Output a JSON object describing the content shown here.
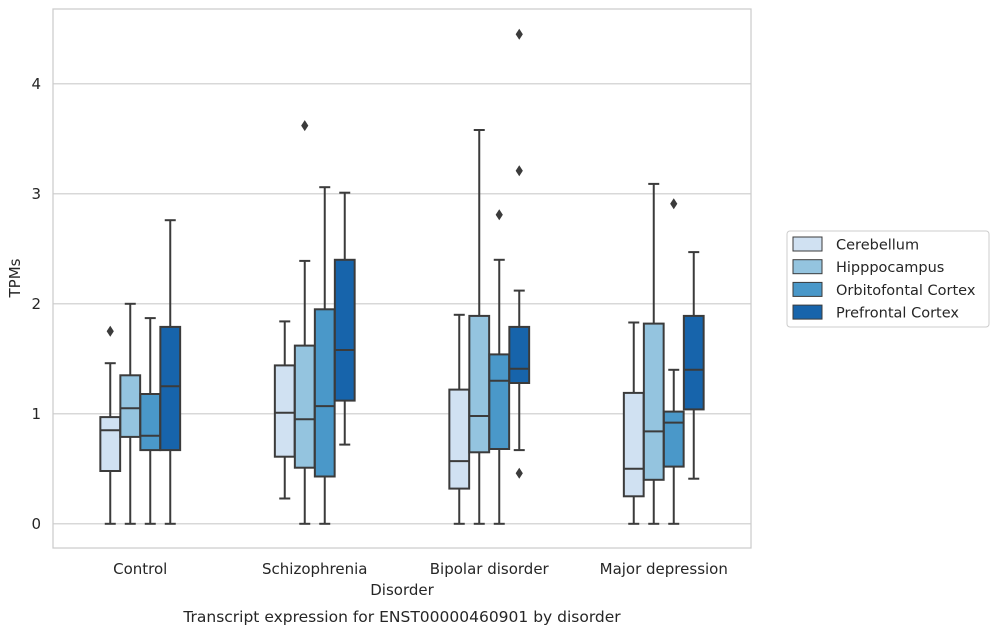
{
  "caption": "Transcript expression for ENST00000460901 by disorder",
  "colors": {
    "Cerebellum": "#d0e1f2",
    "Hipppocampus": "#94c4df",
    "Orbitofontal Cortex": "#4a98c9",
    "Prefrontal Cortex": "#1764ab",
    "edge": "#3b3b3b",
    "grid": "#cccccc"
  },
  "chart_data": {
    "type": "box",
    "xlabel": "Disorder",
    "ylabel": "TPMs",
    "ylim": [
      -0.22,
      4.68
    ],
    "yticks": [
      0,
      1,
      2,
      3,
      4
    ],
    "grid": true,
    "legend_position": "right",
    "categories": [
      "Control",
      "Schizophrenia",
      "Bipolar disorder",
      "Major depression"
    ],
    "series": [
      {
        "name": "Cerebellum",
        "boxes": [
          {
            "whislo": 0.0,
            "q1": 0.48,
            "med": 0.85,
            "q3": 0.97,
            "whishi": 1.46,
            "fliers": [
              1.75
            ]
          },
          {
            "whislo": 0.23,
            "q1": 0.61,
            "med": 1.01,
            "q3": 1.44,
            "whishi": 1.84,
            "fliers": []
          },
          {
            "whislo": 0.0,
            "q1": 0.32,
            "med": 0.57,
            "q3": 1.22,
            "whishi": 1.9,
            "fliers": []
          },
          {
            "whislo": 0.0,
            "q1": 0.25,
            "med": 0.5,
            "q3": 1.19,
            "whishi": 1.83,
            "fliers": []
          }
        ]
      },
      {
        "name": "Hipppocampus",
        "boxes": [
          {
            "whislo": 0.0,
            "q1": 0.79,
            "med": 1.05,
            "q3": 1.35,
            "whishi": 2.0,
            "fliers": []
          },
          {
            "whislo": 0.0,
            "q1": 0.51,
            "med": 0.95,
            "q3": 1.62,
            "whishi": 2.39,
            "fliers": [
              3.62
            ]
          },
          {
            "whislo": 0.0,
            "q1": 0.65,
            "med": 0.98,
            "q3": 1.89,
            "whishi": 3.58,
            "fliers": []
          },
          {
            "whislo": 0.0,
            "q1": 0.4,
            "med": 0.84,
            "q3": 1.82,
            "whishi": 3.09,
            "fliers": []
          }
        ]
      },
      {
        "name": "Orbitofontal Cortex",
        "boxes": [
          {
            "whislo": 0.0,
            "q1": 0.67,
            "med": 0.8,
            "q3": 1.18,
            "whishi": 1.87,
            "fliers": []
          },
          {
            "whislo": 0.0,
            "q1": 0.43,
            "med": 1.07,
            "q3": 1.95,
            "whishi": 3.06,
            "fliers": []
          },
          {
            "whislo": 0.0,
            "q1": 0.68,
            "med": 1.3,
            "q3": 1.54,
            "whishi": 2.4,
            "fliers": [
              2.81
            ]
          },
          {
            "whislo": 0.0,
            "q1": 0.52,
            "med": 0.92,
            "q3": 1.02,
            "whishi": 1.4,
            "fliers": [
              2.91
            ]
          }
        ]
      },
      {
        "name": "Prefrontal Cortex",
        "boxes": [
          {
            "whislo": 0.0,
            "q1": 0.67,
            "med": 1.25,
            "q3": 1.79,
            "whishi": 2.76,
            "fliers": []
          },
          {
            "whislo": 0.72,
            "q1": 1.12,
            "med": 1.58,
            "q3": 2.4,
            "whishi": 3.01,
            "fliers": []
          },
          {
            "whislo": 0.67,
            "q1": 1.28,
            "med": 1.41,
            "q3": 1.79,
            "whishi": 2.12,
            "fliers": [
              0.46,
              3.21,
              4.45
            ]
          },
          {
            "whislo": 0.41,
            "q1": 1.04,
            "med": 1.4,
            "q3": 1.89,
            "whishi": 2.47,
            "fliers": []
          }
        ]
      }
    ]
  }
}
